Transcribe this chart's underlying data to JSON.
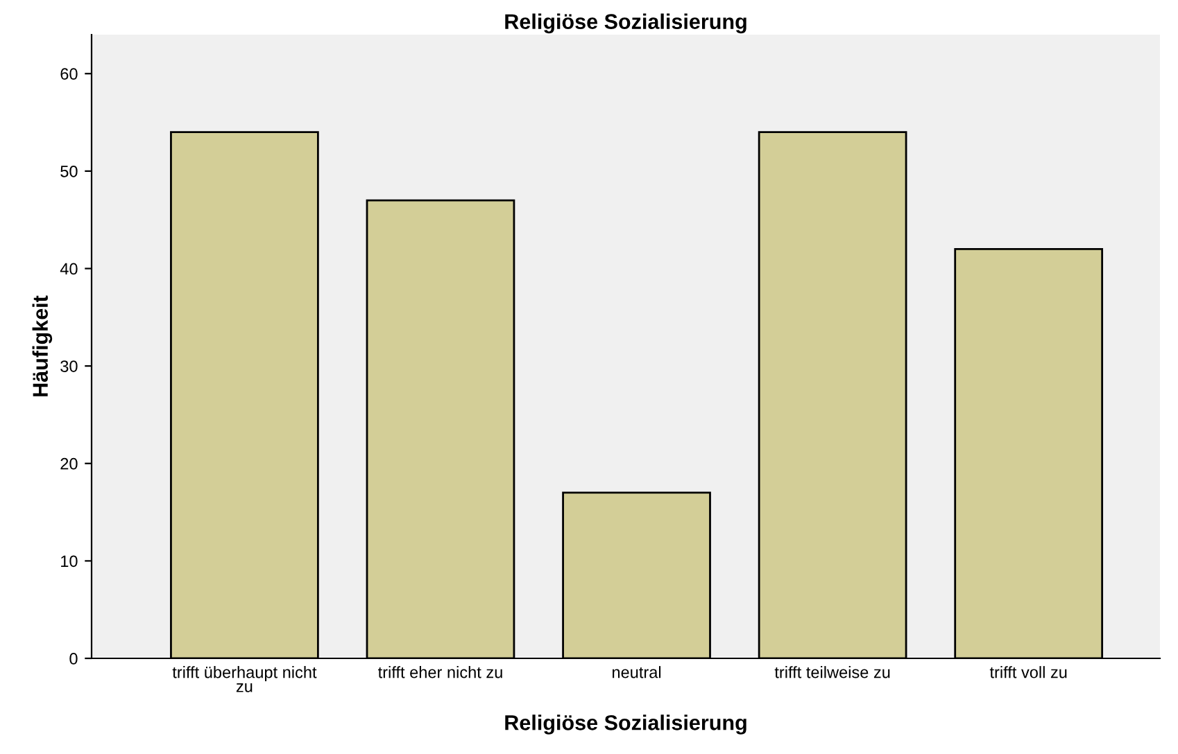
{
  "chart_data": {
    "type": "bar",
    "title": "Religiöse Sozialisierung",
    "xlabel": "Religiöse Sozialisierung",
    "ylabel": "Häufigkeit",
    "categories": [
      "trifft überhaupt nicht\nzu",
      "trifft eher nicht zu",
      "neutral",
      "trifft teilweise zu",
      "trifft voll zu"
    ],
    "values": [
      54,
      47,
      17,
      54,
      42
    ],
    "color": "#d3ce97",
    "ylim": [
      0,
      64
    ],
    "yticks": [
      0,
      10,
      20,
      30,
      40,
      50,
      60
    ],
    "grid": false,
    "legend": false
  }
}
